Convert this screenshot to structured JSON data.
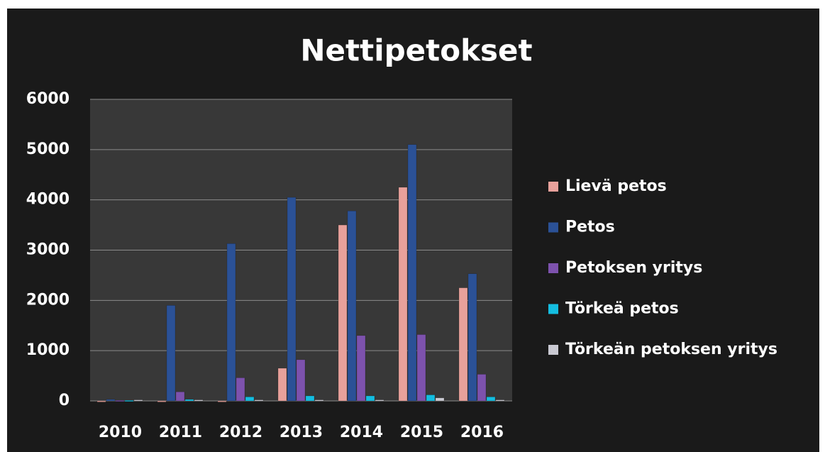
{
  "chart_data": {
    "type": "bar",
    "title": "Nettipetokset",
    "categories": [
      "2010",
      "2011",
      "2012",
      "2013",
      "2014",
      "2015",
      "2016"
    ],
    "series": [
      {
        "name": "Lievä petos",
        "color": "#e8a19b",
        "values": [
          0,
          0,
          0,
          650,
          3500,
          4250,
          2250
        ]
      },
      {
        "name": "Petos",
        "color": "#2b5196",
        "values": [
          30,
          1900,
          3130,
          4050,
          3780,
          5100,
          2530
        ]
      },
      {
        "name": "Petoksen yritys",
        "color": "#7d52ad",
        "values": [
          10,
          180,
          460,
          820,
          1300,
          1320,
          530
        ]
      },
      {
        "name": "Törkeä petos",
        "color": "#14bde0",
        "values": [
          10,
          30,
          80,
          100,
          100,
          120,
          80
        ]
      },
      {
        "name": "Törkeän petoksen yritys",
        "color": "#c9c9d2",
        "values": [
          20,
          20,
          20,
          20,
          20,
          60,
          20
        ]
      }
    ],
    "ylim": [
      0,
      6000
    ],
    "yticks": [
      0,
      1000,
      2000,
      3000,
      4000,
      5000,
      6000
    ],
    "grid": true,
    "legend": "right"
  }
}
